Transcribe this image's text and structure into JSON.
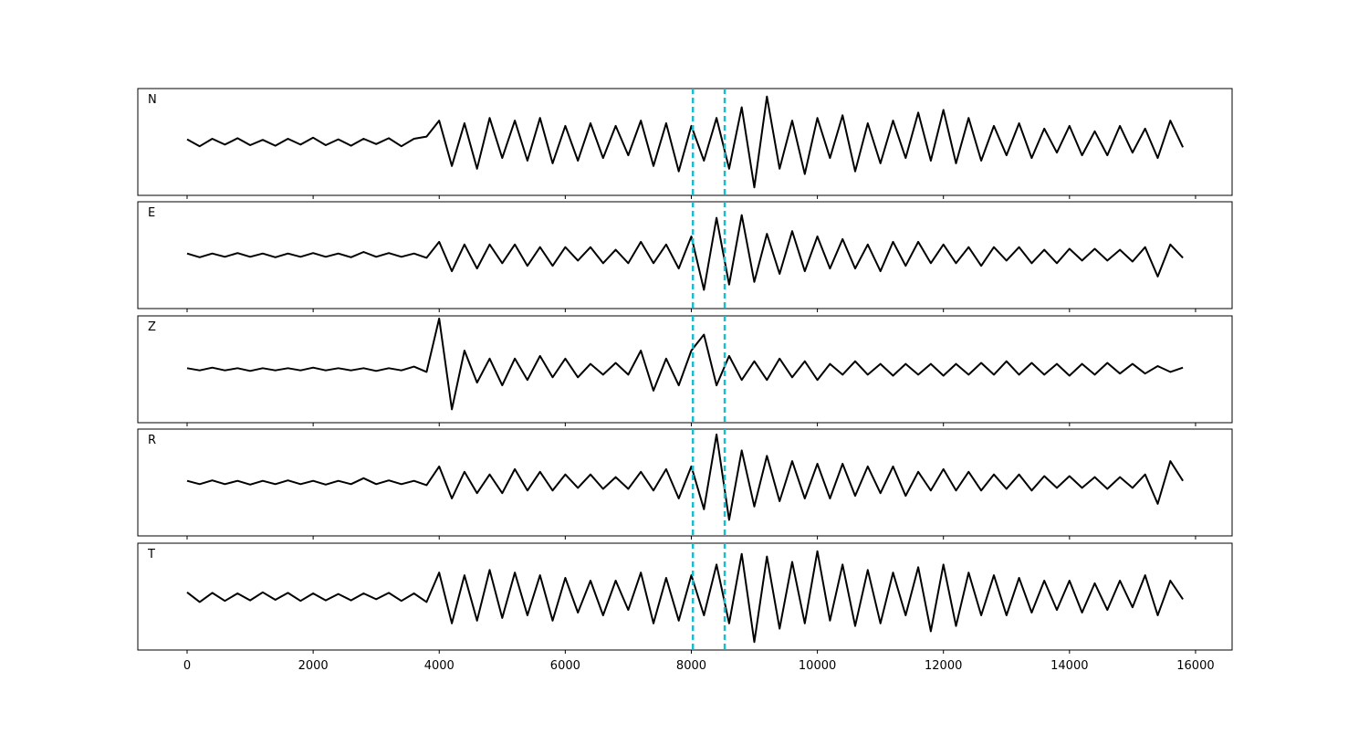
{
  "chart_data": {
    "type": "multi-panel-line",
    "line_color": "#000000",
    "x": [
      0,
      200,
      400,
      600,
      800,
      1000,
      1200,
      1400,
      1600,
      1800,
      2000,
      2200,
      2400,
      2600,
      2800,
      3000,
      3200,
      3400,
      3600,
      3800,
      4000,
      4200,
      4400,
      4600,
      4800,
      5000,
      5200,
      5400,
      5600,
      5800,
      6000,
      6200,
      6400,
      6600,
      6800,
      7000,
      7200,
      7400,
      7600,
      7800,
      8000,
      8200,
      8400,
      8600,
      8800,
      9000,
      9200,
      9400,
      9600,
      9800,
      10000,
      10200,
      10400,
      10600,
      10800,
      11000,
      11200,
      11400,
      11600,
      11800,
      12000,
      12200,
      12400,
      12600,
      12800,
      13000,
      13200,
      13400,
      13600,
      13800,
      14000,
      14200,
      14400,
      14600,
      14800,
      15000,
      15200,
      15400,
      15600,
      15800
    ],
    "series": [
      {
        "name": "N",
        "values": [
          0.05,
          -0.08,
          0.06,
          -0.05,
          0.07,
          -0.06,
          0.04,
          -0.07,
          0.06,
          -0.05,
          0.08,
          -0.06,
          0.05,
          -0.07,
          0.06,
          -0.04,
          0.07,
          -0.08,
          0.06,
          0.1,
          0.4,
          -0.45,
          0.35,
          -0.5,
          0.45,
          -0.3,
          0.4,
          -0.35,
          0.45,
          -0.4,
          0.3,
          -0.35,
          0.35,
          -0.3,
          0.3,
          -0.25,
          0.4,
          -0.45,
          0.35,
          -0.55,
          0.3,
          -0.35,
          0.45,
          -0.5,
          0.65,
          -0.85,
          0.85,
          -0.5,
          0.4,
          -0.6,
          0.45,
          -0.3,
          0.5,
          -0.55,
          0.35,
          -0.4,
          0.4,
          -0.3,
          0.55,
          -0.35,
          0.6,
          -0.4,
          0.45,
          -0.35,
          0.3,
          -0.25,
          0.35,
          -0.3,
          0.25,
          -0.2,
          0.3,
          -0.25,
          0.2,
          -0.25,
          0.3,
          -0.2,
          0.25,
          -0.3,
          0.4,
          -0.1
        ]
      },
      {
        "name": "E",
        "values": [
          0.03,
          -0.04,
          0.03,
          -0.03,
          0.04,
          -0.03,
          0.03,
          -0.04,
          0.03,
          -0.03,
          0.04,
          -0.03,
          0.03,
          -0.04,
          0.06,
          -0.03,
          0.04,
          -0.03,
          0.03,
          -0.05,
          0.25,
          -0.3,
          0.2,
          -0.25,
          0.2,
          -0.15,
          0.2,
          -0.2,
          0.15,
          -0.2,
          0.15,
          -0.1,
          0.15,
          -0.15,
          0.1,
          -0.15,
          0.25,
          -0.15,
          0.2,
          -0.25,
          0.35,
          -0.65,
          0.7,
          -0.55,
          0.75,
          -0.5,
          0.4,
          -0.35,
          0.45,
          -0.3,
          0.35,
          -0.25,
          0.3,
          -0.25,
          0.2,
          -0.3,
          0.25,
          -0.2,
          0.25,
          -0.15,
          0.2,
          -0.15,
          0.15,
          -0.2,
          0.15,
          -0.1,
          0.15,
          -0.15,
          0.1,
          -0.15,
          0.12,
          -0.1,
          0.12,
          -0.1,
          0.1,
          -0.12,
          0.15,
          -0.4,
          0.2,
          -0.05
        ]
      },
      {
        "name": "Z",
        "values": [
          0.02,
          -0.02,
          0.03,
          -0.02,
          0.02,
          -0.03,
          0.02,
          -0.02,
          0.02,
          -0.02,
          0.03,
          -0.02,
          0.02,
          -0.02,
          0.02,
          -0.03,
          0.02,
          -0.02,
          0.05,
          -0.05,
          0.95,
          -0.75,
          0.35,
          -0.25,
          0.2,
          -0.3,
          0.2,
          -0.2,
          0.25,
          -0.15,
          0.2,
          -0.15,
          0.1,
          -0.1,
          0.12,
          -0.1,
          0.35,
          -0.4,
          0.2,
          -0.3,
          0.35,
          0.65,
          -0.3,
          0.25,
          -0.2,
          0.15,
          -0.2,
          0.2,
          -0.15,
          0.15,
          -0.2,
          0.1,
          -0.1,
          0.15,
          -0.1,
          0.1,
          -0.12,
          0.1,
          -0.1,
          0.1,
          -0.12,
          0.1,
          -0.1,
          0.12,
          -0.1,
          0.15,
          -0.1,
          0.12,
          -0.1,
          0.1,
          -0.12,
          0.1,
          -0.1,
          0.12,
          -0.08,
          0.1,
          -0.08,
          0.06,
          -0.05,
          0.03
        ]
      },
      {
        "name": "R",
        "values": [
          0.03,
          -0.03,
          0.04,
          -0.03,
          0.03,
          -0.04,
          0.03,
          -0.03,
          0.04,
          -0.03,
          0.03,
          -0.04,
          0.03,
          -0.03,
          0.08,
          -0.03,
          0.04,
          -0.03,
          0.03,
          -0.05,
          0.3,
          -0.3,
          0.2,
          -0.2,
          0.15,
          -0.2,
          0.25,
          -0.15,
          0.2,
          -0.15,
          0.15,
          -0.1,
          0.15,
          -0.12,
          0.1,
          -0.12,
          0.2,
          -0.15,
          0.25,
          -0.3,
          0.3,
          -0.5,
          0.9,
          -0.7,
          0.6,
          -0.45,
          0.5,
          -0.35,
          0.4,
          -0.3,
          0.35,
          -0.3,
          0.35,
          -0.25,
          0.3,
          -0.2,
          0.3,
          -0.25,
          0.2,
          -0.15,
          0.25,
          -0.15,
          0.2,
          -0.15,
          0.15,
          -0.12,
          0.15,
          -0.15,
          0.12,
          -0.1,
          0.12,
          -0.1,
          0.1,
          -0.12,
          0.1,
          -0.1,
          0.15,
          -0.4,
          0.4,
          0.03
        ]
      },
      {
        "name": "T",
        "values": [
          0.08,
          -0.1,
          0.07,
          -0.08,
          0.06,
          -0.07,
          0.08,
          -0.06,
          0.07,
          -0.08,
          0.06,
          -0.07,
          0.05,
          -0.07,
          0.06,
          -0.05,
          0.07,
          -0.08,
          0.06,
          -0.1,
          0.45,
          -0.5,
          0.4,
          -0.45,
          0.5,
          -0.4,
          0.45,
          -0.35,
          0.4,
          -0.45,
          0.35,
          -0.3,
          0.3,
          -0.35,
          0.3,
          -0.25,
          0.45,
          -0.5,
          0.35,
          -0.45,
          0.4,
          -0.35,
          0.6,
          -0.5,
          0.8,
          -0.85,
          0.75,
          -0.6,
          0.65,
          -0.5,
          0.85,
          -0.45,
          0.6,
          -0.55,
          0.5,
          -0.5,
          0.45,
          -0.35,
          0.55,
          -0.65,
          0.6,
          -0.55,
          0.45,
          -0.35,
          0.4,
          -0.35,
          0.35,
          -0.3,
          0.3,
          -0.25,
          0.3,
          -0.3,
          0.25,
          -0.25,
          0.3,
          -0.2,
          0.4,
          -0.35,
          0.3,
          -0.05
        ]
      }
    ],
    "vlines": [
      8025,
      8530
    ],
    "vline_color": "#17becf",
    "xlim": [
      -782,
      16580
    ],
    "xticks": [
      0,
      2000,
      4000,
      6000,
      8000,
      10000,
      12000,
      14000,
      16000
    ],
    "ylim": [
      -1,
      1
    ]
  }
}
